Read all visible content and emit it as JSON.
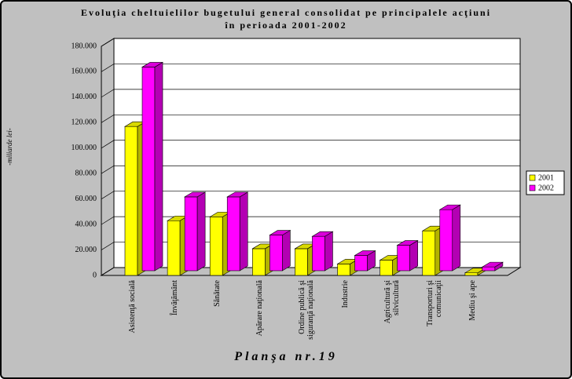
{
  "chart_data": {
    "type": "bar3d",
    "title": "Evoluţia cheltuielilor bugetului general consolidat pe principalele acţiuni\nîn perioada 2001-2002",
    "y_label": "-miliarde lei-",
    "footer": "Planşa nr.19",
    "categories": [
      "Asistenţă socială",
      "Învăţământ",
      "Sănătate",
      "Apărare naţională",
      "Ordine publică şi\nsiguranţă naţională",
      "Industrie",
      "Agricultură şi\nsilvicultură",
      "Transporturi şi\ncomunicaţii",
      "Mediu şi ape"
    ],
    "series": [
      {
        "name": "2001",
        "color": "#ffff00",
        "values": [
          117000,
          43000,
          46000,
          21000,
          21000,
          9000,
          12000,
          35000,
          2000
        ]
      },
      {
        "name": "2002",
        "color": "#ff00ff",
        "values": [
          160000,
          58000,
          58000,
          28000,
          27000,
          12000,
          20000,
          48000,
          3000
        ]
      }
    ],
    "ylim": [
      0,
      180000
    ],
    "yticks": [
      0,
      {
        "value": 20000,
        "label": "20.000"
      },
      {
        "value": 40000,
        "label": "40.000"
      },
      {
        "value": 60000,
        "label": "60.000"
      },
      {
        "value": 80000,
        "label": "80.000"
      },
      {
        "value": 100000,
        "label": "100.000"
      },
      {
        "value": 120000,
        "label": "120.000"
      },
      {
        "value": 140000,
        "label": "140.000"
      },
      {
        "value": 160000,
        "label": "160.000"
      },
      {
        "value": 180000,
        "label": "180.000"
      }
    ],
    "grid": true,
    "legend": "right"
  }
}
